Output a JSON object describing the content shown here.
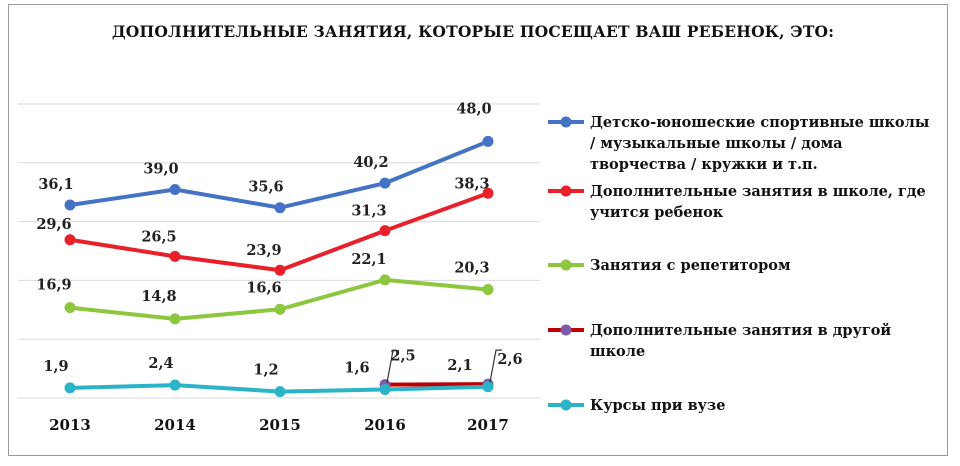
{
  "chart_data": {
    "type": "line",
    "title": "ДОПОЛНИТЕЛЬНЫЕ ЗАНЯТИЯ, КОТОРЫЕ ПОСЕЩАЕТ ВАШ РЕБЕНОК, ЭТО:",
    "categories": [
      "2013",
      "2014",
      "2015",
      "2016",
      "2017"
    ],
    "ylim": [
      0,
      55
    ],
    "grid": true,
    "legend_position": "right",
    "series": [
      {
        "name": "Детско-юношеские спортивные школы / музыкальные школы / дома творчества / кружки и т.п.",
        "legend_lines": [
          "Детско-юношеские спортивные школы",
          "/ музыкальные школы / дома",
          "творчества / кружки и т.п."
        ],
        "color": "#4472C4",
        "values": [
          36.1,
          39.0,
          35.6,
          40.2,
          48.0
        ],
        "labels": [
          "36,1",
          "39,0",
          "35,6",
          "40,2",
          "48,0"
        ]
      },
      {
        "name": "Дополнительные занятия в школе, где учится ребенок",
        "legend_lines": [
          "Дополнительные занятия в школе, где",
          "учится ребенок"
        ],
        "color": "#E8202A",
        "values": [
          29.6,
          26.5,
          23.9,
          31.3,
          38.3
        ],
        "labels": [
          "29,6",
          "26,5",
          "23,9",
          "31,3",
          "38,3"
        ]
      },
      {
        "name": "Занятия с репетитором",
        "legend_lines": [
          "Занятия с репетитором"
        ],
        "color": "#8DC63F",
        "values": [
          16.9,
          14.8,
          16.6,
          22.1,
          20.3
        ],
        "labels": [
          "16,9",
          "14,8",
          "16,6",
          "22,1",
          "20,3"
        ]
      },
      {
        "name": "Дополнительные занятия в другой школе",
        "legend_lines": [
          "Дополнительные занятия в другой",
          "школе"
        ],
        "color": "#C00000",
        "marker_color": "#7E5BA8",
        "values": [
          null,
          null,
          null,
          2.5,
          2.6
        ],
        "labels": [
          "",
          "",
          "",
          "2,5",
          "2,6"
        ]
      },
      {
        "name": "Курсы при вузе",
        "legend_lines": [
          "Курсы при вузе"
        ],
        "color": "#2BB3C8",
        "values": [
          1.9,
          2.4,
          1.2,
          1.6,
          2.1
        ],
        "labels": [
          "1,9",
          "2,4",
          "1,2",
          "1,6",
          "2,1"
        ]
      }
    ]
  }
}
